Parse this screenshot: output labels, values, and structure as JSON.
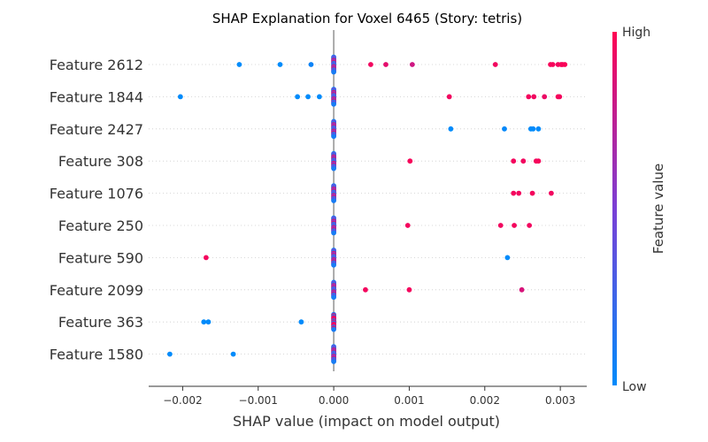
{
  "chart_data": {
    "type": "scatter",
    "title": "SHAP Explanation for Voxel 6465 (Story: tetris)",
    "xlabel": "SHAP value (impact on model output)",
    "xlim": [
      -0.00245,
      0.00335
    ],
    "x_ticks": [
      -0.002,
      -0.001,
      0.0,
      0.001,
      0.002,
      0.003
    ],
    "x_tick_labels": [
      "−0.002",
      "−0.001",
      "0.000",
      "0.001",
      "0.002",
      "0.003"
    ],
    "colorbar": {
      "label": "Feature value",
      "high_label": "High",
      "low_label": "Low",
      "low_color": "#008bfb",
      "high_color": "#ff0052"
    },
    "grid": "dotted-horizontal",
    "features": [
      {
        "name": "Feature 2612",
        "points": [
          [
            -0.00125,
            0.0
          ],
          [
            -0.00071,
            0.0
          ],
          [
            -0.0003,
            0.05
          ],
          [
            0.0,
            0.5
          ],
          [
            0.00049,
            0.95
          ],
          [
            0.00069,
            0.9
          ],
          [
            0.00104,
            0.82
          ],
          [
            0.00214,
            0.95
          ],
          [
            0.00287,
            0.97
          ],
          [
            0.0029,
            0.97
          ],
          [
            0.00297,
            0.95
          ],
          [
            0.00301,
            0.98
          ],
          [
            0.00303,
            0.97
          ],
          [
            0.00306,
            0.98
          ]
        ]
      },
      {
        "name": "Feature 1844",
        "points": [
          [
            -0.00203,
            0.0
          ],
          [
            -0.00048,
            0.0
          ],
          [
            -0.00034,
            0.0
          ],
          [
            -0.00019,
            0.0
          ],
          [
            0.0,
            0.5
          ],
          [
            0.00153,
            0.95
          ],
          [
            0.00258,
            0.96
          ],
          [
            0.00265,
            0.95
          ],
          [
            0.00279,
            0.93
          ],
          [
            0.00297,
            0.97
          ],
          [
            0.00299,
            0.96
          ]
        ]
      },
      {
        "name": "Feature 2427",
        "points": [
          [
            0.0,
            0.5
          ],
          [
            0.00155,
            0.0
          ],
          [
            0.00226,
            0.02
          ],
          [
            0.00261,
            0.0
          ],
          [
            0.00264,
            0.0
          ],
          [
            0.00271,
            0.0
          ]
        ]
      },
      {
        "name": "Feature 308",
        "points": [
          [
            0.0,
            0.5
          ],
          [
            0.00101,
            0.97
          ],
          [
            0.00238,
            0.96
          ],
          [
            0.00251,
            0.95
          ],
          [
            0.00268,
            0.96
          ],
          [
            0.00271,
            0.97
          ]
        ]
      },
      {
        "name": "Feature 1076",
        "points": [
          [
            0.0,
            0.5
          ],
          [
            0.00238,
            0.96
          ],
          [
            0.00245,
            0.95
          ],
          [
            0.00263,
            0.96
          ],
          [
            0.00288,
            0.95
          ]
        ]
      },
      {
        "name": "Feature 250",
        "points": [
          [
            0.0,
            0.5
          ],
          [
            0.00098,
            0.96
          ],
          [
            0.00221,
            0.95
          ],
          [
            0.00239,
            0.96
          ],
          [
            0.00259,
            0.95
          ]
        ]
      },
      {
        "name": "Feature 590",
        "points": [
          [
            -0.00169,
            0.96
          ],
          [
            0.0,
            0.5
          ],
          [
            0.0023,
            0.0
          ]
        ]
      },
      {
        "name": "Feature 2099",
        "points": [
          [
            0.0,
            0.5
          ],
          [
            0.00042,
            0.96
          ],
          [
            0.001,
            0.96
          ],
          [
            0.00249,
            0.85
          ]
        ]
      },
      {
        "name": "Feature 363",
        "points": [
          [
            -0.00172,
            0.0
          ],
          [
            -0.00166,
            0.0
          ],
          [
            -0.00043,
            0.0
          ],
          [
            0.0,
            0.95
          ]
        ]
      },
      {
        "name": "Feature 1580",
        "points": [
          [
            -0.00217,
            0.0
          ],
          [
            -0.00133,
            0.0
          ],
          [
            0.0,
            0.5
          ]
        ]
      }
    ]
  }
}
